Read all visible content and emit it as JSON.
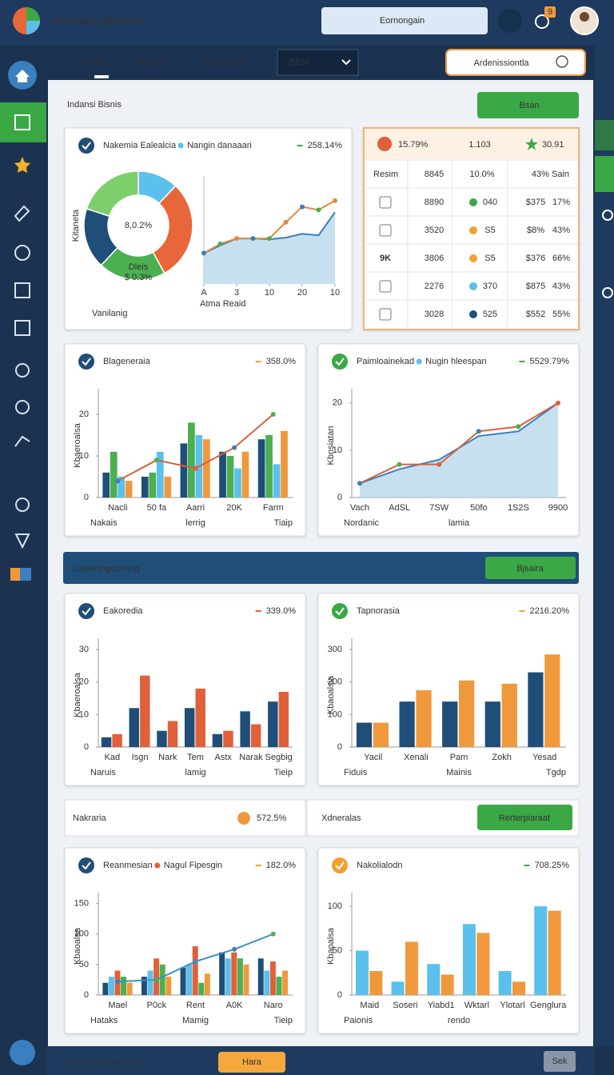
{
  "header": {
    "title": "Skenulasin Ekonomia",
    "search": "Eornongain",
    "badge": "9"
  },
  "toolbar": {
    "tabs": [
      "Techis",
      "Medny",
      "Stanaraca"
    ],
    "dropdown": "Bltoe",
    "search": "Ardenissiontla"
  },
  "page": {
    "title": "Indansi Bisnis",
    "button": "Bsan"
  },
  "table": {
    "header": [
      "15.79%",
      "1.103",
      "30.91"
    ],
    "first_row": [
      "Resim",
      "8845",
      "10.0%",
      "43% Sain"
    ],
    "rows": [
      {
        "cells": [
          "8890",
          "040",
          "$375",
          "17%"
        ],
        "dot": "#3aa845"
      },
      {
        "cells": [
          "3520",
          "S5",
          "$8%",
          "43%"
        ],
        "dot": "#f0a030"
      },
      {
        "tag": "9K",
        "cells": [
          "3806",
          "S5",
          "$376",
          "66%"
        ],
        "dot": "#f0a030"
      },
      {
        "cells": [
          "2276",
          "370",
          "$875",
          "43%"
        ],
        "dot": "#5bc0eb"
      },
      {
        "cells": [
          "3028",
          "525",
          "$552",
          "55%"
        ],
        "dot": "#1f4e79"
      }
    ]
  },
  "charts": [
    {
      "type": "donut",
      "title": "Nakemia Ealealcia",
      "legend": "Nangin danaaari",
      "legend_color": "#5bc0eb",
      "stat": "258.14%",
      "stat_color": "#3aa845",
      "icon_color": "#1f4e79",
      "center_label": "8,0.2%",
      "segment_label": "Dleis",
      "segment_value": "$ 0.3%",
      "ylabel": "Kitaneta",
      "footer": [
        "Vanilanig"
      ],
      "values": [
        12,
        30,
        20,
        18,
        20
      ],
      "colors": [
        "#5bc0eb",
        "#e8673a",
        "#4caf50",
        "#1f4e79",
        "#7ccf6a"
      ]
    },
    {
      "type": "line",
      "x": [
        0,
        1,
        2,
        3,
        4,
        5,
        6,
        7,
        8
      ],
      "xlim": [
        0,
        8
      ],
      "xticks": [
        {
          "value": 0,
          "label": "A"
        },
        {
          "value": 2,
          "label": "3"
        },
        {
          "value": 4,
          "label": "10"
        },
        {
          "value": 6,
          "label": "20"
        },
        {
          "value": 8,
          "label": "10"
        }
      ],
      "xlabel": "Atma Reaid",
      "ylim": [
        0,
        14
      ],
      "series": [
        {
          "color": "#3a7fc0",
          "style": "area",
          "values": [
            4,
            5,
            5.9,
            5.9,
            5.8,
            6,
            6.5,
            6.3,
            9.3
          ]
        },
        {
          "color": "#e08a3c",
          "style": "line",
          "values": [
            4,
            5.2,
            5.9,
            5.9,
            5.9,
            8,
            10,
            9.6,
            10.8
          ]
        }
      ]
    },
    {
      "type": "bar",
      "title": "Blageneraia",
      "stat": "358.0%",
      "stat_color": "#f0a030",
      "icon_color": "#1f4e79",
      "ylabel": "Kbaeroalsa",
      "ylim": [
        0,
        25
      ],
      "yticks": [
        0,
        10,
        20
      ],
      "categories": [
        "Nacli",
        "50 fa",
        "Aarri",
        "20K",
        "Farm"
      ],
      "series": [
        {
          "color": "#1f4e79",
          "values": [
            6,
            5,
            13,
            11,
            14
          ]
        },
        {
          "color": "#4caf50",
          "values": [
            11,
            6,
            18,
            10,
            15
          ]
        },
        {
          "color": "#5bc0eb",
          "values": [
            5,
            11,
            15,
            7,
            8
          ]
        },
        {
          "color": "#f0993c",
          "values": [
            4,
            5,
            14,
            11,
            16
          ]
        },
        {
          "color": "#d9603a",
          "style": "line",
          "values": [
            4,
            9,
            7,
            12,
            20
          ]
        }
      ],
      "footer": [
        "Nakais",
        "lerrig",
        "Tiaip"
      ]
    },
    {
      "type": "line",
      "title": "Paimloainekad",
      "legend": "Nugin hleespan",
      "legend_color": "#5bc0eb",
      "stat": "5529.79%",
      "stat_color": "#3aa845",
      "icon_color": "#3aa845",
      "ylabel": "Kbnsiatan",
      "ylim": [
        0,
        22
      ],
      "yticks": [
        0,
        10,
        20
      ],
      "categories": [
        "Vach",
        "AdSL",
        "7SW",
        "50fo",
        "1S2S",
        "9900"
      ],
      "series": [
        {
          "color": "#3a7fc0",
          "style": "area",
          "values": [
            3,
            6,
            8,
            13,
            14,
            20
          ]
        },
        {
          "color": "#d9603a",
          "style": "line",
          "values": [
            3,
            7,
            7,
            14,
            15,
            20
          ]
        }
      ],
      "footer": [
        "Nordanic",
        "lamia"
      ]
    },
    {
      "type": "bar",
      "title": "Eakoredia",
      "stat": "339.0%",
      "stat_color": "#e0603a",
      "icon_color": "#1f4e79",
      "ylabel": "Kbaeroalsa",
      "ylim": [
        0,
        32
      ],
      "yticks": [
        0,
        10,
        20,
        30
      ],
      "categories": [
        "Kad",
        "Isgn",
        "Nark",
        "Tem",
        "Astx",
        "Narak",
        "Segbig"
      ],
      "series": [
        {
          "color": "#1f4e79",
          "values": [
            3,
            12,
            5,
            12,
            4,
            11,
            14
          ]
        },
        {
          "color": "#e0603a",
          "values": [
            4,
            22,
            8,
            18,
            5,
            7,
            17
          ]
        }
      ],
      "footer": [
        "Naruis",
        "lamig",
        "Tieip"
      ]
    },
    {
      "type": "bar",
      "title": "Tapnorasia",
      "stat": "2216.20%",
      "stat_color": "#f0a030",
      "icon_color": "#3aa845",
      "ylabel": "Kbaoalsia",
      "ylim": [
        0,
        320
      ],
      "yticks": [
        0,
        100,
        200,
        300
      ],
      "categories": [
        "Yacil",
        "Xenali",
        "Pam",
        "Zokh",
        "Yesad"
      ],
      "series": [
        {
          "color": "#1f4e79",
          "values": [
            75,
            140,
            140,
            140,
            230
          ]
        },
        {
          "color": "#f0993c",
          "values": [
            75,
            175,
            205,
            195,
            285
          ]
        }
      ],
      "footer": [
        "Fiduis",
        "Mainis",
        "Tgdp"
      ]
    },
    {
      "type": "bar",
      "title": "Reanmesian",
      "legend": "Nagul Fipesgin",
      "legend_color": "#e0603a",
      "stat": "182.0%",
      "stat_color": "#f0a030",
      "icon_color": "#1f4e79",
      "ylabel": "Kbaoalsa",
      "ylim": [
        0,
        160
      ],
      "yticks": [
        0,
        50,
        100,
        150
      ],
      "categories": [
        "Mael",
        "P0ck",
        "Rent",
        "A0K",
        "Naro"
      ],
      "series": [
        {
          "color": "#1f4e79",
          "values": [
            20,
            30,
            45,
            70,
            60
          ]
        },
        {
          "color": "#5bc0eb",
          "values": [
            30,
            40,
            50,
            60,
            40
          ]
        },
        {
          "color": "#e0603a",
          "values": [
            40,
            60,
            80,
            70,
            55
          ]
        },
        {
          "color": "#4caf50",
          "values": [
            30,
            50,
            20,
            60,
            30
          ]
        },
        {
          "color": "#f0993c",
          "values": [
            20,
            30,
            35,
            50,
            40
          ]
        },
        {
          "color": "#3a8fc8",
          "style": "line",
          "values": [
            22,
            25,
            55,
            75,
            100
          ]
        }
      ],
      "footer": [
        "Hataks",
        "Mamig",
        "Tieip"
      ]
    },
    {
      "type": "bar",
      "title": "Nakolialodn",
      "stat": "708.25%",
      "stat_color": "#3aa845",
      "icon_color": "#f0a030",
      "ylabel": "Kbaoalsa",
      "ylim": [
        0,
        110
      ],
      "yticks": [
        0,
        50,
        100
      ],
      "categories": [
        "Maid",
        "Soseri",
        "Yiabd1",
        "Wktarl",
        "Ylotarl",
        "Genglura"
      ],
      "series": [
        {
          "color": "#5bc0eb",
          "values": [
            50,
            15,
            35,
            80,
            27,
            100
          ]
        },
        {
          "color": "#f0993c",
          "values": [
            27,
            60,
            23,
            70,
            15,
            95
          ]
        }
      ],
      "footer": [
        "Paionis",
        "rendo"
      ]
    }
  ],
  "band": {
    "title": "Sanlooingoohiing",
    "button": "Bjsaira"
  },
  "summary": {
    "left": "Nakraria",
    "left_stat": "572.5%",
    "right": "Xdneralas",
    "button": "Rerterpiaraat"
  },
  "footer": {
    "title": "Venlarnglogurihngs",
    "button": "Hara",
    "action": "Sek"
  }
}
